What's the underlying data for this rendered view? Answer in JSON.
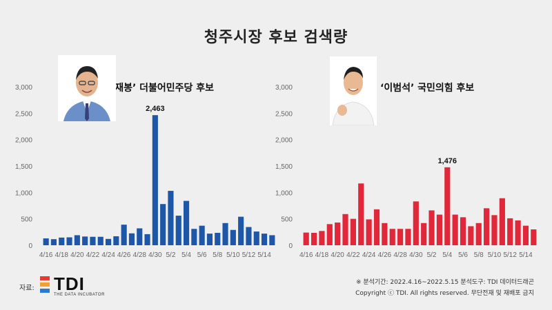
{
  "title": "청주시장 후보 검색량",
  "source_label": "자료:",
  "logo": {
    "text": "TDI",
    "subtitle": "THE DATA INCUBATOR",
    "colors": [
      "#e63c2f",
      "#f2a12c",
      "#2a7bd0"
    ]
  },
  "notes": {
    "period": "※ 분석기간: 2022.4.16~2022.5.15   분석도구: TDI 데이터드래곤",
    "copyright": "Copyright ⓒ TDI. All rights reserved. 무단전재 및 재배포 금지"
  },
  "photos": [
    {
      "name": "candidate-photo-song",
      "suit_color": "#6b8fc8"
    },
    {
      "name": "candidate-photo-lee",
      "suit_color": "#f2f2f2"
    }
  ],
  "chart_data": [
    {
      "type": "bar",
      "title": "‘송재봉’ 더불어민주당 후보",
      "color": "#1f57a8",
      "ylim": [
        0,
        3000
      ],
      "yticks": [
        0,
        500,
        1000,
        1500,
        2000,
        2500,
        3000
      ],
      "ytick_labels": [
        "0",
        "500",
        "1,000",
        "1,500",
        "2,000",
        "2,500",
        "3,000"
      ],
      "categories": [
        "4/16",
        "4/17",
        "4/18",
        "4/19",
        "4/20",
        "4/21",
        "4/22",
        "4/23",
        "4/24",
        "4/25",
        "4/26",
        "4/27",
        "4/28",
        "4/29",
        "4/30",
        "5/1",
        "5/2",
        "5/3",
        "5/4",
        "5/5",
        "5/6",
        "5/7",
        "5/8",
        "5/9",
        "5/10",
        "5/11",
        "5/12",
        "5/13",
        "5/14",
        "5/15"
      ],
      "xtick_labels": [
        "4/16",
        "4/18",
        "4/20",
        "4/22",
        "4/24",
        "4/26",
        "4/28",
        "4/30",
        "5/2",
        "5/4",
        "5/6",
        "5/8",
        "5/10",
        "5/12",
        "5/14"
      ],
      "values": [
        130,
        115,
        145,
        150,
        190,
        165,
        160,
        160,
        120,
        170,
        390,
        225,
        320,
        210,
        2463,
        780,
        1030,
        560,
        840,
        310,
        370,
        220,
        235,
        420,
        290,
        540,
        345,
        260,
        220,
        190
      ],
      "peak_label": "2,463",
      "peak_index": 14
    },
    {
      "type": "bar",
      "title": "‘이범석’ 국민의힘 후보",
      "color": "#e0283a",
      "ylim": [
        0,
        3000
      ],
      "yticks": [
        0,
        500,
        1000,
        1500,
        2000,
        2500,
        3000
      ],
      "ytick_labels": [
        "0",
        "500",
        "1,000",
        "1,500",
        "2,000",
        "2,500",
        "3,000"
      ],
      "categories": [
        "4/16",
        "4/17",
        "4/18",
        "4/19",
        "4/20",
        "4/21",
        "4/22",
        "4/23",
        "4/24",
        "4/25",
        "4/26",
        "4/27",
        "4/28",
        "4/29",
        "4/30",
        "5/1",
        "5/2",
        "5/3",
        "5/4",
        "5/5",
        "5/6",
        "5/7",
        "5/8",
        "5/9",
        "5/10",
        "5/11",
        "5/12",
        "5/13",
        "5/14",
        "5/15"
      ],
      "xtick_labels": [
        "4/16",
        "4/18",
        "4/20",
        "4/22",
        "4/24",
        "4/26",
        "4/28",
        "4/30",
        "5/2",
        "5/4",
        "5/6",
        "5/8",
        "5/10",
        "5/12",
        "5/14"
      ],
      "values": [
        240,
        235,
        270,
        400,
        430,
        590,
        500,
        1170,
        490,
        680,
        420,
        310,
        310,
        310,
        830,
        420,
        660,
        580,
        1476,
        580,
        530,
        360,
        420,
        700,
        570,
        890,
        510,
        470,
        370,
        300
      ],
      "peak_label": "1,476",
      "peak_index": 18
    }
  ]
}
